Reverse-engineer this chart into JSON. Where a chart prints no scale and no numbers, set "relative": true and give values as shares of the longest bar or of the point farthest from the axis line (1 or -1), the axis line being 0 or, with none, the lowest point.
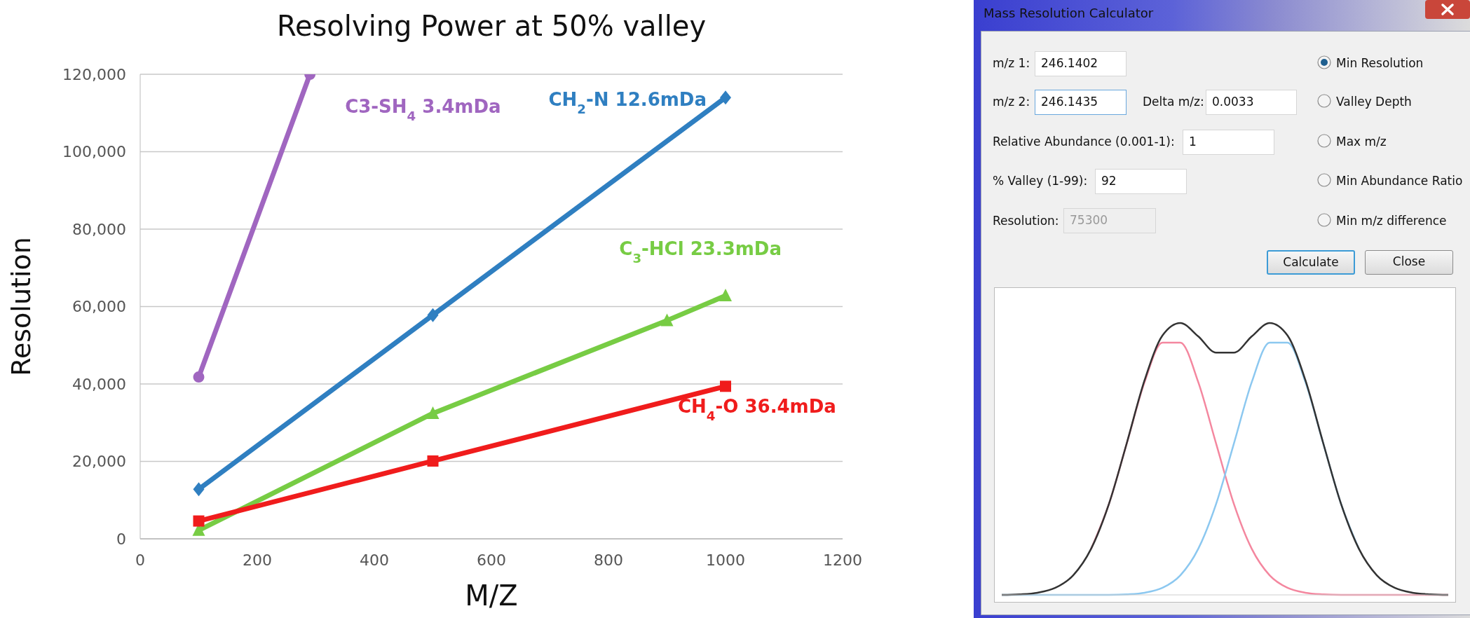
{
  "chart_data": [
    {
      "type": "line",
      "title": "Resolving Power at 50% valley",
      "xlabel": "M/Z",
      "ylabel": "Resolution",
      "xlim": [
        0,
        1200
      ],
      "xticks": [
        0,
        200,
        400,
        600,
        800,
        1000,
        1200
      ],
      "ylim": [
        0,
        120000
      ],
      "yticks": [
        0,
        {
          "value": 20000,
          "label": "20,000"
        },
        {
          "value": 40000,
          "label": "40,000"
        },
        {
          "value": 60000,
          "label": "60,000"
        },
        {
          "value": 80000,
          "label": "80,000"
        },
        {
          "value": 100000,
          "label": "100,000"
        },
        {
          "value": 120000,
          "label": "120,000"
        }
      ],
      "grid": "y",
      "series": [
        {
          "name": "C3-SH$_{4}$ 3.4mDa",
          "color": "#a066c0",
          "marker": "circle",
          "x": [
            100,
            290
          ],
          "values": [
            41800,
            120000
          ]
        },
        {
          "name": "CH$_{2}$-N 12.6mDa",
          "color": "#2f7fc1",
          "marker": "diamond",
          "x": [
            100,
            500,
            1000
          ],
          "values": [
            12800,
            57800,
            114000
          ]
        },
        {
          "name": "C$_{3}$-HCl 23.3mDa",
          "color": "#77cc44",
          "marker": "triangle",
          "x": [
            100,
            500,
            900,
            1000
          ],
          "values": [
            2200,
            32400,
            56400,
            62800
          ]
        },
        {
          "name": "CH$_{4}$-O 36.4mDa",
          "color": "#f01c1c",
          "marker": "square",
          "x": [
            100,
            500,
            1000
          ],
          "values": [
            4600,
            20100,
            39400
          ]
        }
      ]
    },
    {
      "type": "other",
      "title": "Mass Resolution Calculator",
      "annotations": [
        "m/z 1:",
        "246.1402",
        "m/z 2:",
        "246.1435",
        "Delta m/z:",
        "0.0033",
        "Relative Abundance  (0.001-1):",
        "1",
        "% Valley (1-99):",
        "92",
        "Resolution:",
        "75300",
        "Min Resolution",
        "Valley Depth",
        "Max m/z",
        "Min Abundance Ratio",
        "Min m/z difference",
        "Calculate",
        "Close"
      ]
    },
    {
      "type": "line",
      "relative": true,
      "marker": "none",
      "categories": [
        null,
        null,
        null,
        null,
        null,
        null,
        null,
        null,
        null,
        null,
        null,
        null,
        null,
        null,
        null,
        null,
        null,
        null,
        null,
        null,
        null,
        null,
        null,
        null,
        null,
        null
      ],
      "series": [
        {
          "color": "#f4879f",
          "values": [
            null,
            null,
            null,
            null,
            null,
            0.169,
            0.334,
            0.557,
            0.783,
            0.928,
            0.928,
            0.783,
            0.557,
            0.334,
            0.169,
            0.072,
            0.026,
            0.008,
            0.002,
            0,
            0,
            0,
            0,
            0,
            0,
            0
          ]
        },
        {
          "color": "#8cc8f0",
          "values": [
            0,
            0,
            0,
            0,
            0,
            0,
            0,
            0.002,
            0.008,
            0.026,
            0.072,
            0.169,
            0.334,
            0.557,
            0.783,
            0.928,
            0.928,
            0.783,
            0.557,
            0.334,
            0.169,
            null,
            null,
            null,
            null,
            null
          ]
        },
        {
          "color": "#333333",
          "values": [
            0,
            0.002,
            0.008,
            0.026,
            0.072,
            0.169,
            0.334,
            0.558,
            0.79,
            0.954,
            1,
            0.951,
            0.891,
            0.891,
            0.951,
            1,
            0.954,
            0.79,
            0.558,
            0.334,
            0.169,
            0.072,
            0.026,
            0.008,
            0.002,
            0
          ]
        }
      ]
    }
  ]
}
